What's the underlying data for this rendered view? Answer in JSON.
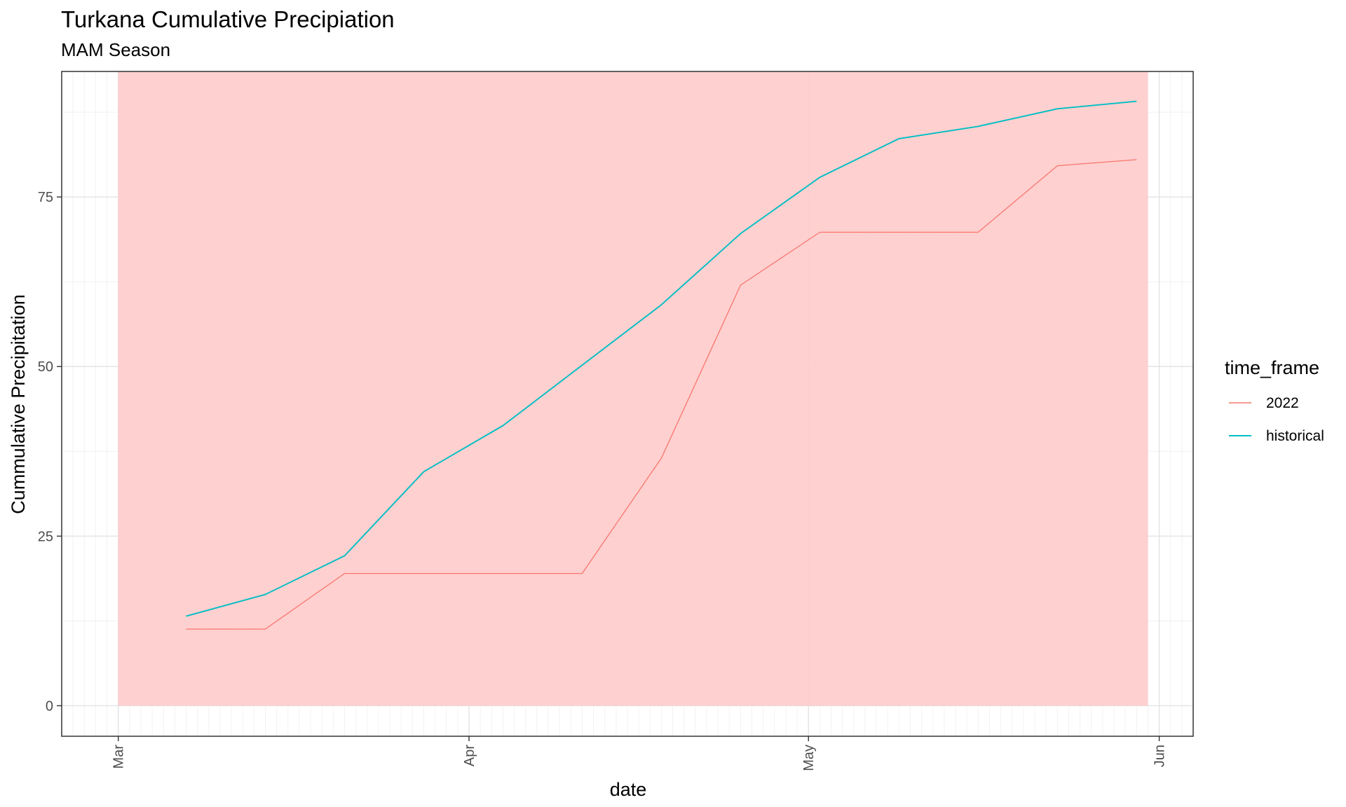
{
  "chart_data": {
    "type": "line",
    "title": "Turkana Cumulative Precipiation",
    "subtitle": "MAM Season",
    "xlabel": "date",
    "ylabel": "Cummulative Precipitation",
    "x_ticks": [
      {
        "date": "2022-03-01",
        "label": "Mar"
      },
      {
        "date": "2022-04-01",
        "label": "Apr"
      },
      {
        "date": "2022-05-01",
        "label": "May"
      },
      {
        "date": "2022-06-01",
        "label": "Jun"
      }
    ],
    "y_ticks": [
      0,
      25,
      50,
      75
    ],
    "xlim": [
      "2022-02-24",
      "2022-06-04"
    ],
    "ylim": [
      -4.5,
      93.5
    ],
    "grid": true,
    "minor_grid": "daily",
    "legend": {
      "title": "time_frame",
      "position": "right"
    },
    "shaded_region": {
      "start": "2022-03-01",
      "end": "2022-05-31",
      "ymin": 0,
      "ymax": 93.5,
      "color": "#ffcccc"
    },
    "series": [
      {
        "name": "2022",
        "color": "#f8766d",
        "points": [
          {
            "x": "2022-03-07",
            "y": 11.3
          },
          {
            "x": "2022-03-14",
            "y": 11.3
          },
          {
            "x": "2022-03-21",
            "y": 19.5
          },
          {
            "x": "2022-04-11",
            "y": 19.5
          },
          {
            "x": "2022-04-18",
            "y": 36.5
          },
          {
            "x": "2022-04-25",
            "y": 62
          },
          {
            "x": "2022-05-02",
            "y": 69.8
          },
          {
            "x": "2022-05-16",
            "y": 69.8
          },
          {
            "x": "2022-05-23",
            "y": 79.6
          },
          {
            "x": "2022-05-30",
            "y": 80.5
          }
        ]
      },
      {
        "name": "historical",
        "color": "#00bfc4",
        "points": [
          {
            "x": "2022-03-07",
            "y": 13.2
          },
          {
            "x": "2022-03-14",
            "y": 16.4
          },
          {
            "x": "2022-03-21",
            "y": 22.1
          },
          {
            "x": "2022-03-28",
            "y": 34.5
          },
          {
            "x": "2022-04-04",
            "y": 41.3
          },
          {
            "x": "2022-04-11",
            "y": 50.2
          },
          {
            "x": "2022-04-18",
            "y": 59.1
          },
          {
            "x": "2022-04-25",
            "y": 69.6
          },
          {
            "x": "2022-05-02",
            "y": 77.9
          },
          {
            "x": "2022-05-09",
            "y": 83.6
          },
          {
            "x": "2022-05-16",
            "y": 85.4
          },
          {
            "x": "2022-05-23",
            "y": 88
          },
          {
            "x": "2022-05-30",
            "y": 89.1
          }
        ]
      }
    ]
  }
}
